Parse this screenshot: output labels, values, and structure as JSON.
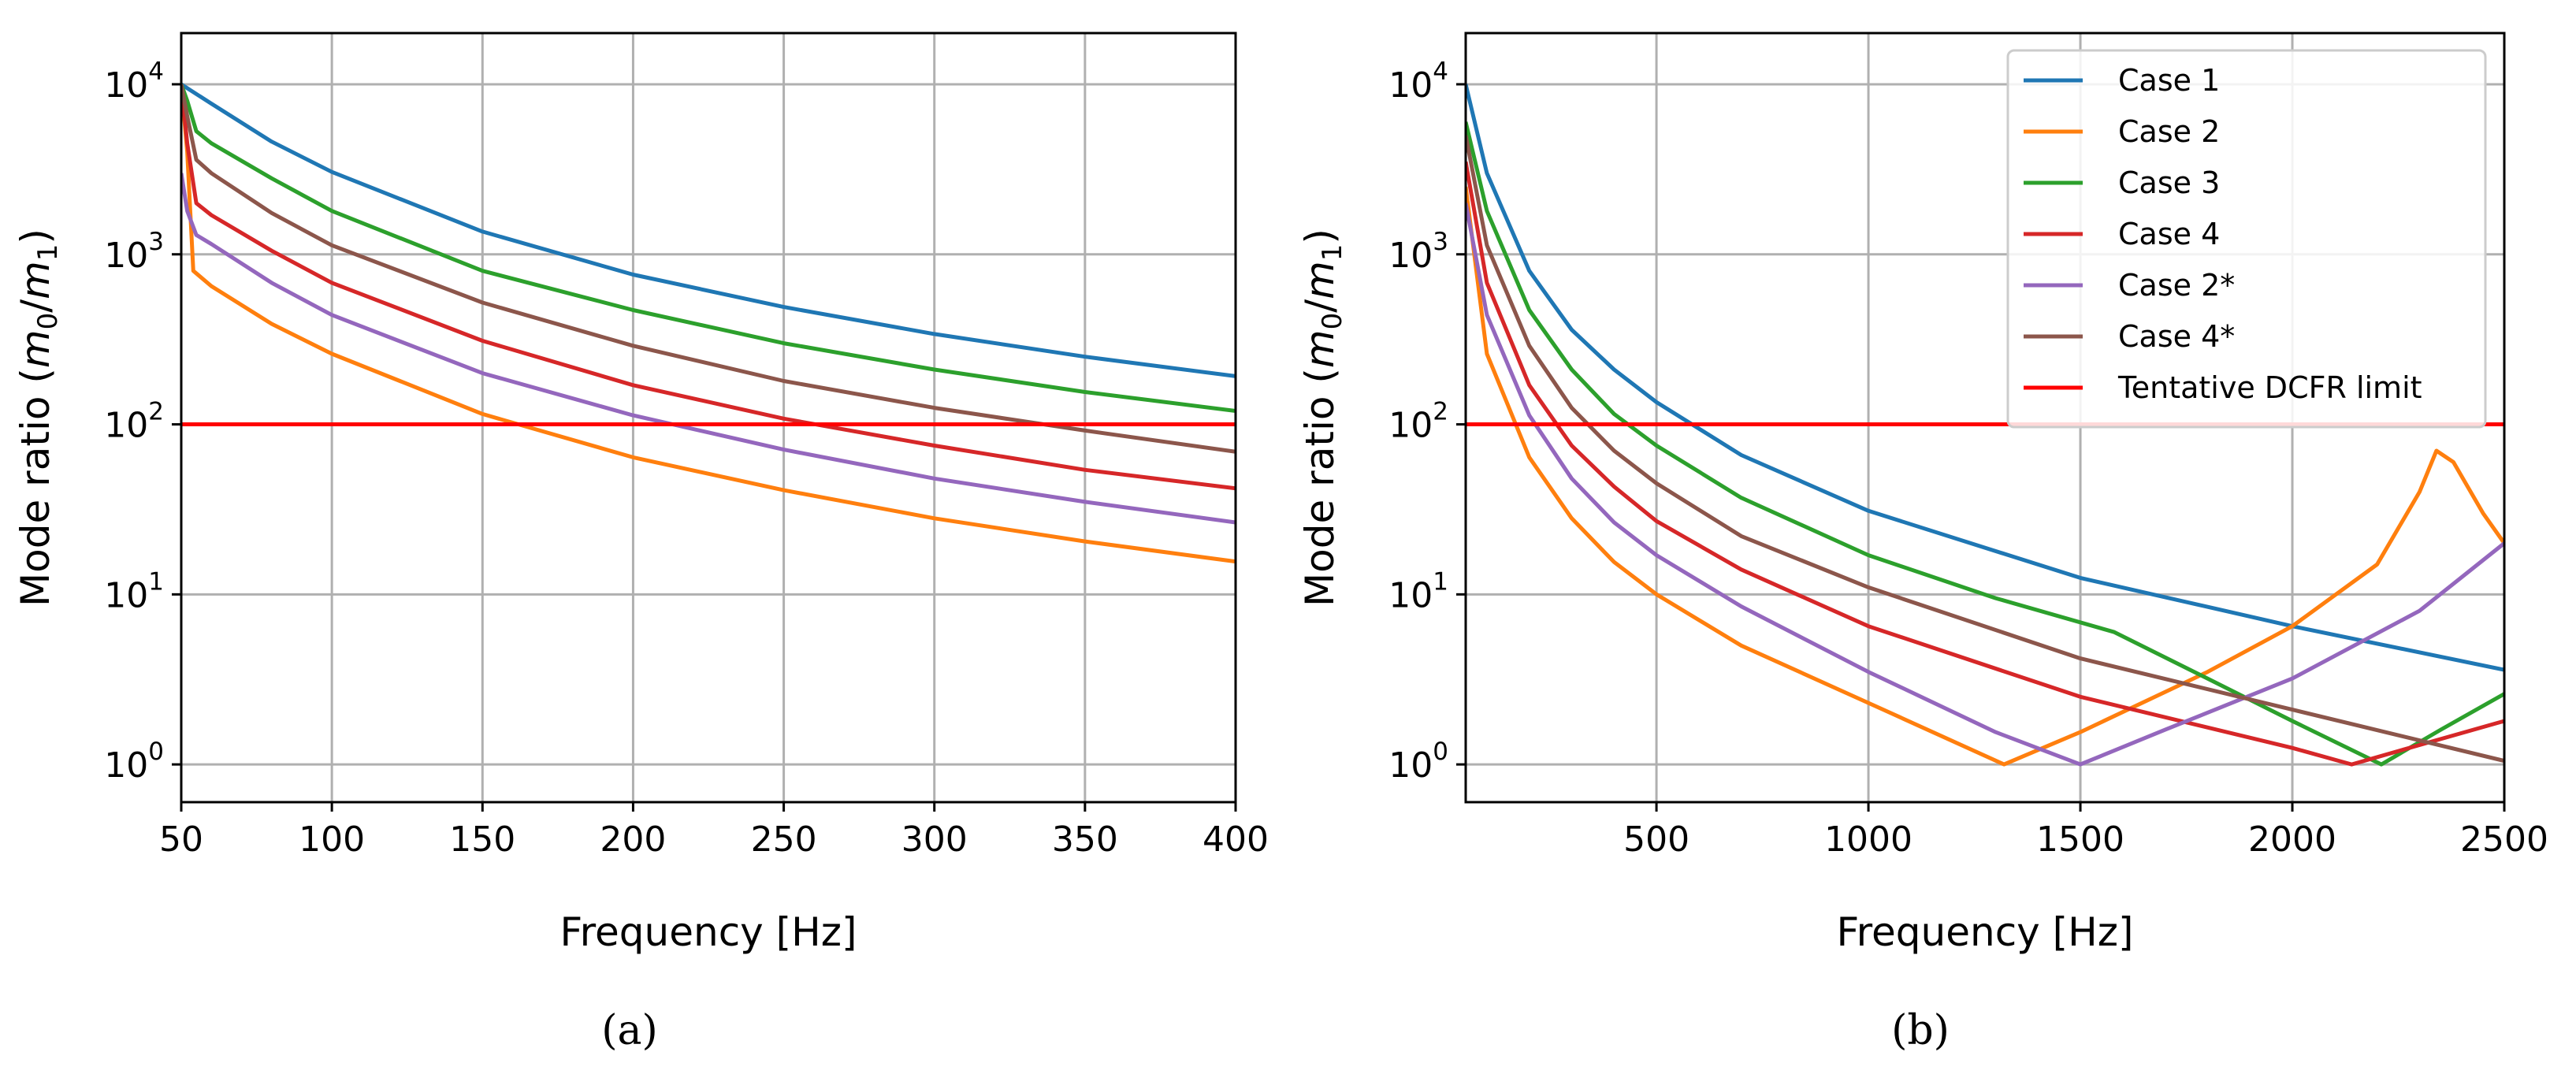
{
  "chart_data": [
    {
      "type": "line",
      "panel_caption": "(a)",
      "xlabel": "Frequency [Hz]",
      "ylabel": "Mode ratio",
      "ylabel_math": "(m0/m1)",
      "ylabel_m0": "m",
      "ylabel_sub0": "0",
      "ylabel_slash": "/",
      "ylabel_m1": "m",
      "ylabel_sub1": "1",
      "yscale": "log",
      "xlim": [
        50,
        400
      ],
      "ylim": [
        0.6,
        20000
      ],
      "xticks": [
        50,
        100,
        150,
        200,
        250,
        300,
        350,
        400
      ],
      "xtick_labels": [
        "50",
        "100",
        "150",
        "200",
        "250",
        "300",
        "350",
        "400"
      ],
      "yticks": [
        1,
        10,
        100,
        1000,
        10000
      ],
      "ytick_bases": [
        "10",
        "10",
        "10",
        "10",
        "10"
      ],
      "ytick_exps": [
        "0",
        "1",
        "2",
        "3",
        "4"
      ],
      "grid": true,
      "series": [
        {
          "name": "Case 1",
          "color": "#1f77b4",
          "x": [
            50,
            60,
            80,
            100,
            150,
            200,
            250,
            300,
            350,
            400
          ],
          "y": [
            10000,
            7700,
            4600,
            3050,
            1360,
            760,
            490,
            340,
            250,
            192
          ]
        },
        {
          "name": "Case 2",
          "color": "#ff7f0e",
          "x": [
            50,
            52,
            54,
            60,
            80,
            100,
            150,
            200,
            250,
            300,
            350,
            400
          ],
          "y": [
            10000,
            4000,
            800,
            650,
            390,
            260,
            115,
            64,
            41,
            28,
            20.5,
            15.6
          ]
        },
        {
          "name": "Case 3",
          "color": "#2ca02c",
          "x": [
            50,
            52,
            55,
            60,
            80,
            100,
            150,
            200,
            250,
            300,
            350,
            400
          ],
          "y": [
            10000,
            8000,
            5300,
            4500,
            2800,
            1800,
            800,
            470,
            300,
            210,
            155,
            120
          ]
        },
        {
          "name": "Case 4",
          "color": "#d62728",
          "x": [
            50,
            52,
            55,
            60,
            80,
            100,
            150,
            200,
            250,
            300,
            350,
            400
          ],
          "y": [
            10000,
            4500,
            2000,
            1700,
            1050,
            680,
            310,
            170,
            108,
            75,
            54,
            42
          ]
        },
        {
          "name": "Case 2*",
          "color": "#9467bd",
          "x": [
            50,
            52,
            55,
            60,
            80,
            100,
            150,
            200,
            250,
            300,
            350,
            400
          ],
          "y": [
            3000,
            1800,
            1300,
            1150,
            680,
            440,
            200,
            113,
            71,
            48,
            35,
            26.5
          ]
        },
        {
          "name": "Case 4*",
          "color": "#8c564b",
          "x": [
            50,
            52,
            55,
            60,
            80,
            100,
            150,
            200,
            250,
            300,
            350,
            400
          ],
          "y": [
            10000,
            6500,
            3600,
            3000,
            1750,
            1130,
            520,
            290,
            180,
            125,
            92,
            69
          ]
        },
        {
          "name": "Tentative DCFR limit",
          "color": "#ff0000",
          "x": [
            50,
            400
          ],
          "y": [
            100,
            100
          ]
        }
      ]
    },
    {
      "type": "line",
      "panel_caption": "(b)",
      "xlabel": "Frequency [Hz]",
      "ylabel": "Mode ratio",
      "ylabel_math": "(m0/m1)",
      "ylabel_m0": "m",
      "ylabel_sub0": "0",
      "ylabel_slash": "/",
      "ylabel_m1": "m",
      "ylabel_sub1": "1",
      "yscale": "log",
      "xlim": [
        50,
        2500
      ],
      "ylim": [
        0.6,
        20000
      ],
      "xticks": [
        500,
        1000,
        1500,
        2000,
        2500
      ],
      "xtick_labels": [
        "500",
        "1000",
        "1500",
        "2000",
        "2500"
      ],
      "yticks": [
        1,
        10,
        100,
        1000,
        10000
      ],
      "ytick_bases": [
        "10",
        "10",
        "10",
        "10",
        "10"
      ],
      "ytick_exps": [
        "0",
        "1",
        "2",
        "3",
        "4"
      ],
      "grid": true,
      "legend_position": "top-right",
      "series": [
        {
          "name": "Case 1",
          "color": "#1f77b4",
          "x": [
            50,
            100,
            200,
            300,
            400,
            500,
            700,
            1000,
            1500,
            2000,
            2500
          ],
          "y": [
            10000,
            3000,
            800,
            360,
            210,
            135,
            66,
            31,
            12.5,
            6.5,
            3.6
          ]
        },
        {
          "name": "Case 2",
          "color": "#ff7f0e",
          "x": [
            50,
            100,
            200,
            300,
            400,
            500,
            700,
            1000,
            1320,
            1500,
            1800,
            2000,
            2200,
            2300,
            2340,
            2380,
            2450,
            2500
          ],
          "y": [
            2500,
            260,
            64,
            28,
            15.5,
            10,
            5,
            2.3,
            1,
            1.55,
            3.5,
            6.5,
            15,
            40,
            70,
            60,
            30,
            20
          ]
        },
        {
          "name": "Case 3",
          "color": "#2ca02c",
          "x": [
            50,
            100,
            200,
            300,
            400,
            500,
            700,
            1000,
            1300,
            1580,
            1800,
            2000,
            2210,
            2350,
            2500
          ],
          "y": [
            6000,
            1800,
            470,
            210,
            115,
            75,
            37,
            17,
            9.5,
            6,
            3.2,
            1.8,
            1,
            1.6,
            2.6
          ]
        },
        {
          "name": "Case 4",
          "color": "#d62728",
          "x": [
            50,
            100,
            200,
            300,
            400,
            500,
            700,
            1000,
            1500,
            2000,
            2140,
            2300,
            2500
          ],
          "y": [
            3500,
            680,
            170,
            75,
            43,
            27,
            14,
            6.5,
            2.5,
            1.25,
            1,
            1.3,
            1.8
          ]
        },
        {
          "name": "Case 2*",
          "color": "#9467bd",
          "x": [
            50,
            100,
            200,
            300,
            400,
            500,
            700,
            1000,
            1300,
            1500,
            1700,
            2000,
            2300,
            2500
          ],
          "y": [
            2000,
            440,
            113,
            48,
            26.5,
            17,
            8.5,
            3.5,
            1.55,
            1,
            1.6,
            3.2,
            8,
            20
          ]
        },
        {
          "name": "Case 4*",
          "color": "#8c564b",
          "x": [
            50,
            100,
            200,
            300,
            400,
            500,
            700,
            1000,
            1500,
            2000,
            2500
          ],
          "y": [
            5000,
            1130,
            290,
            125,
            70,
            45,
            22,
            11,
            4.2,
            2.1,
            1.05
          ]
        },
        {
          "name": "Tentative DCFR limit",
          "color": "#ff0000",
          "x": [
            50,
            2500
          ],
          "y": [
            100,
            100
          ]
        }
      ]
    }
  ]
}
